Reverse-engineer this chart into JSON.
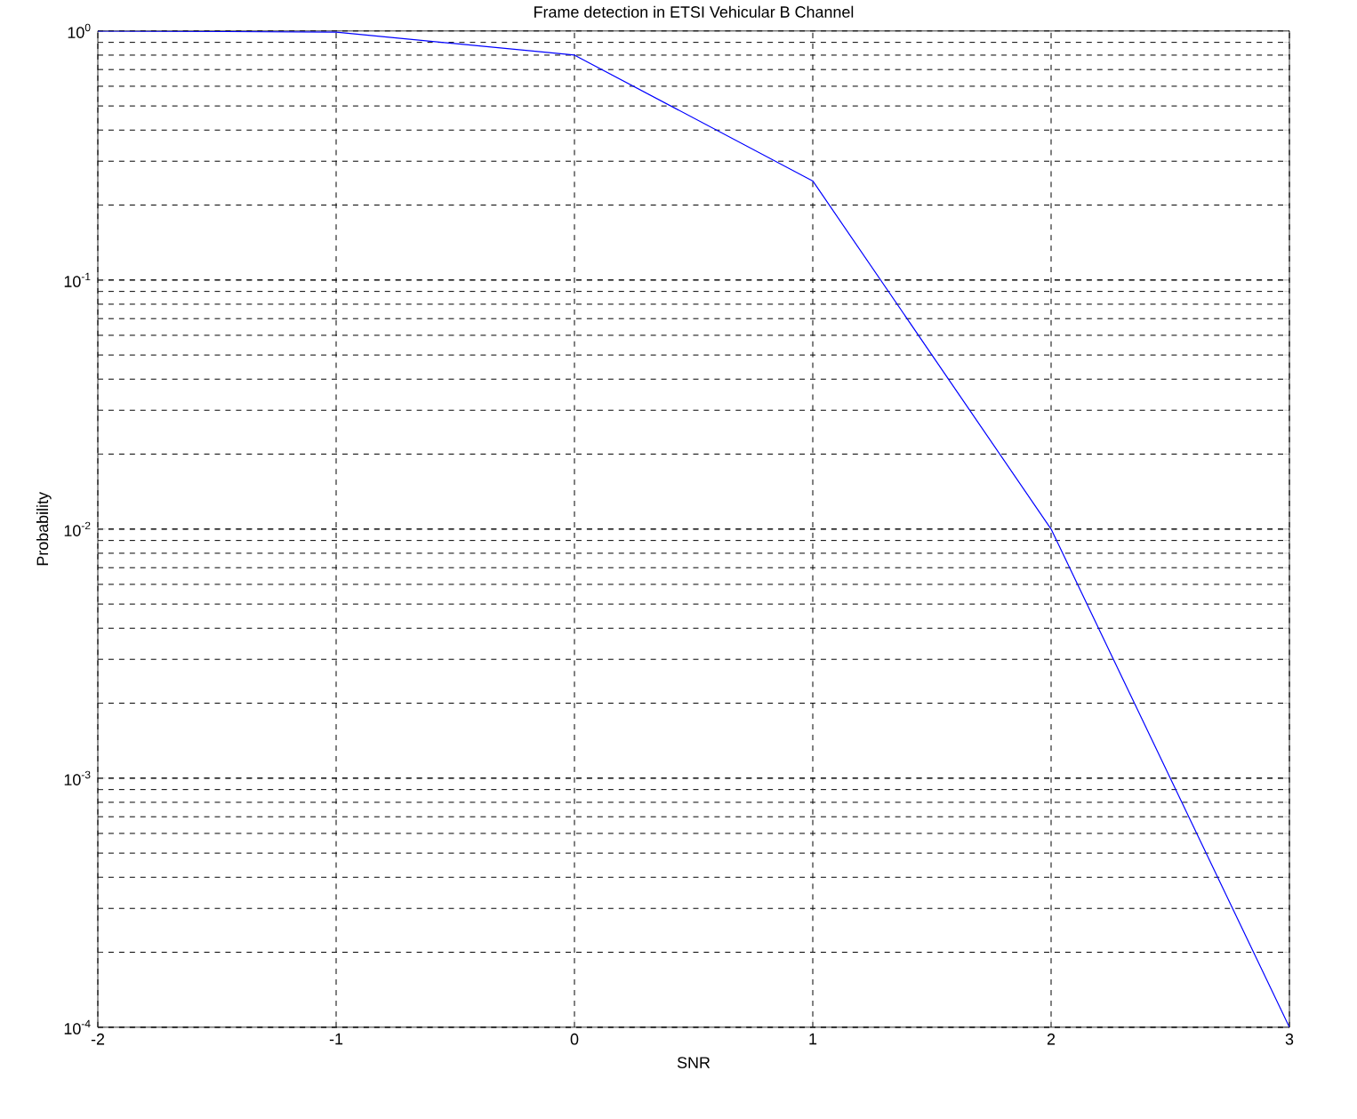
{
  "chart_data": {
    "type": "line",
    "title": "Frame detection in ETSI Vehicular B Channel",
    "xlabel": "SNR",
    "ylabel": "Probability",
    "log": "y",
    "grid": true,
    "marker": "none",
    "line_style": "solid",
    "x": [
      -2,
      -1,
      0,
      1,
      2,
      3
    ],
    "series": [
      {
        "color": "#0000ff",
        "values": [
          1,
          0.99,
          0.8,
          0.25,
          0.01,
          0.0001
        ]
      }
    ],
    "xlim": [
      -2,
      3
    ],
    "xticks": [
      -2,
      -1,
      0,
      1,
      2,
      3
    ],
    "ylim": [
      0.0001,
      1
    ],
    "yticks": [
      {
        "value": 0.0001,
        "label": "10$^{-4}$"
      },
      {
        "value": 0.001,
        "label": "10$^{-3}$"
      },
      {
        "value": 0.01,
        "label": "10$^{-2}$"
      },
      {
        "value": 0.1,
        "label": "10$^{-1}$"
      },
      {
        "value": 1,
        "label": "10$^{0}$"
      }
    ]
  }
}
